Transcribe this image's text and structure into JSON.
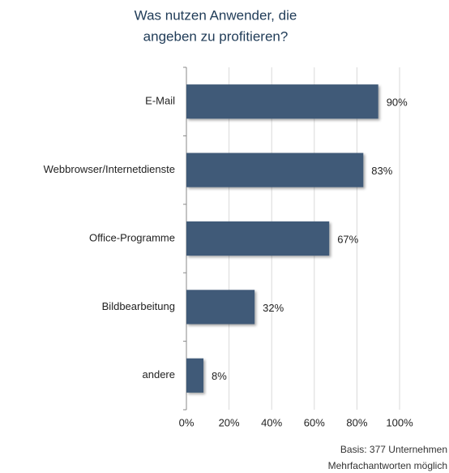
{
  "chart_data": {
    "type": "bar",
    "orientation": "horizontal",
    "title": [
      "Was nutzen Anwender, die",
      "angeben zu profitieren?"
    ],
    "categories": [
      "E-Mail",
      "Webbrowser/Internetdienste",
      "Office-Programme",
      "Bildbearbeitung",
      "andere"
    ],
    "values": [
      90,
      83,
      67,
      32,
      8
    ],
    "value_labels": [
      "90%",
      "83%",
      "67%",
      "32%",
      "8%"
    ],
    "color": "#3f5a78",
    "xlim": [
      0,
      100
    ],
    "xticks": [
      {
        "value": 0,
        "label": "0%"
      },
      {
        "value": 20,
        "label": "20%"
      },
      {
        "value": 40,
        "label": "40%"
      },
      {
        "value": 60,
        "label": "60%"
      },
      {
        "value": 80,
        "label": "80%"
      },
      {
        "value": 100,
        "label": "100%"
      }
    ],
    "grid": true,
    "footnote": [
      "Basis: 377 Unternehmen",
      "Mehrfachantworten möglich"
    ]
  }
}
